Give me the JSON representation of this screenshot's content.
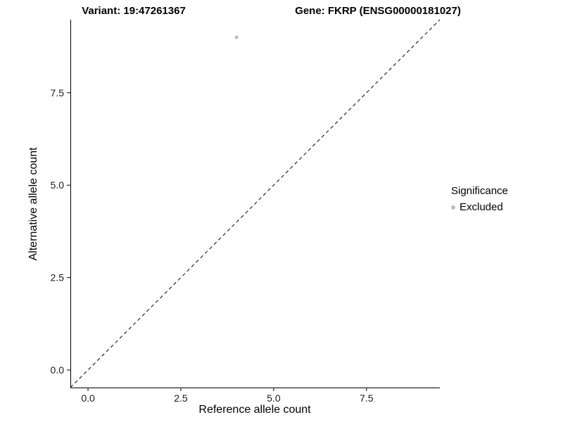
{
  "chart_data": {
    "type": "scatter",
    "title_left": "Variant: 19:47261367",
    "title_right": "Gene: FKRP (ENSG00000181027)",
    "xlabel": "Reference allele count",
    "ylabel": "Alternative allele count",
    "xlim": [
      -0.475,
      9.475
    ],
    "ylim": [
      -0.475,
      9.475
    ],
    "xticks": [
      0.0,
      2.5,
      5.0,
      7.5
    ],
    "yticks": [
      0.0,
      2.5,
      5.0,
      7.5
    ],
    "xtick_labels": [
      "0.0",
      "2.5",
      "5.0",
      "7.5"
    ],
    "ytick_labels": [
      "0.0",
      "2.5",
      "5.0",
      "7.5"
    ],
    "grid": false,
    "series": [
      {
        "name": "Excluded",
        "color": "#bdbdbd",
        "point_radius": 2.5,
        "points": [
          {
            "x": 4,
            "y": 9
          }
        ]
      }
    ],
    "reference_line": {
      "style": "dashed",
      "color": "#000000",
      "from": {
        "x": -0.475,
        "y": -0.475
      },
      "to": {
        "x": 9.475,
        "y": 9.475
      }
    },
    "axis_color": "#000000",
    "tick_label_color": "#1a1a1a",
    "legend": {
      "title": "Significance",
      "position": "right",
      "items": [
        {
          "label": "Excluded",
          "color": "#bdbdbd"
        }
      ]
    }
  }
}
